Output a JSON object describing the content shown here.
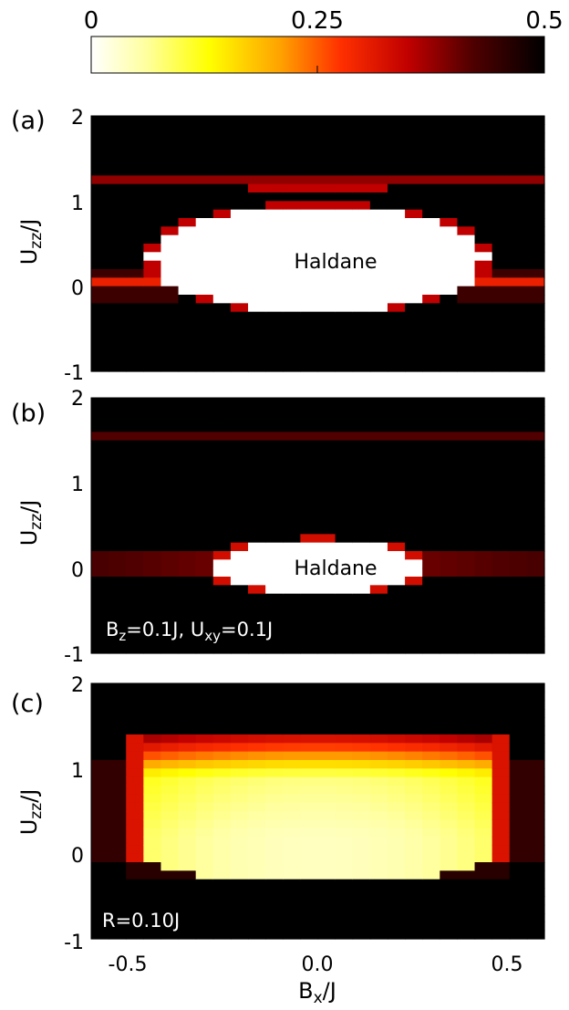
{
  "colorbar": {
    "ticks": [
      {
        "value": 0,
        "label": "0"
      },
      {
        "value": 0.25,
        "label": "0.25"
      },
      {
        "value": 0.5,
        "label": "0.5"
      }
    ],
    "range": [
      0,
      0.5
    ],
    "colormap": "inverted-hot",
    "colors": [
      "#ffffff",
      "#ffff66",
      "#ffd800",
      "#ff8a00",
      "#ff2a00",
      "#c00000",
      "#700000",
      "#2a0000",
      "#000000"
    ]
  },
  "chart_data": [
    {
      "type": "heatmap",
      "panel_label": "(a)",
      "xlabel": "B_x/J",
      "ylabel": "U_zz/J",
      "xlim": [
        -0.6,
        0.6
      ],
      "ylim": [
        -1,
        2
      ],
      "yticks": [
        -1,
        0,
        1,
        2
      ],
      "annotation": "Haldane",
      "inset_text": "",
      "value_range": [
        0,
        0.5
      ],
      "regions": {
        "haldane_half_width_at_center": 0.44,
        "haldane_u_range": [
          -0.3,
          0.95
        ],
        "edge_band_u": 0.05,
        "edge_band_value": 0.3,
        "top_band_u": 1.25,
        "top_band_value": 0.38,
        "upper_band_u": 1.1,
        "upper_band_half_width": 0.2,
        "upper_band_value": 0.35
      }
    },
    {
      "type": "heatmap",
      "panel_label": "(b)",
      "xlabel": "B_x/J",
      "ylabel": "U_zz/J",
      "xlim": [
        -0.6,
        0.6
      ],
      "ylim": [
        -1,
        2
      ],
      "yticks": [
        -1,
        0,
        1,
        2
      ],
      "annotation": "Haldane",
      "inset_text": "B_z=0.1J, U_xy=0.1J",
      "value_range": [
        0,
        0.5
      ],
      "regions": {
        "haldane_half_width_at_center": 0.27,
        "haldane_u_range": [
          -0.3,
          0.32
        ],
        "edge_band_u": 0.05,
        "edge_band_value": 0.38,
        "top_band_u": 1.55,
        "top_band_value": 0.42
      }
    },
    {
      "type": "heatmap",
      "panel_label": "(c)",
      "xlabel": "B_x/J",
      "ylabel": "U_zz/J",
      "xlim": [
        -0.6,
        0.6
      ],
      "ylim": [
        -1,
        2
      ],
      "yticks": [
        -1,
        0,
        1,
        2
      ],
      "xticks": [
        -0.5,
        0.0,
        0.5
      ],
      "xtick_labels": [
        "-0.5",
        "0.0",
        "0.5"
      ],
      "annotation": "",
      "inset_text": "R=0.10J",
      "value_range": [
        0,
        0.5
      ],
      "regions": {
        "plateau_half_width": 0.52,
        "plateau_u_range": [
          -0.3,
          1.4
        ],
        "low_value_center": 0.04,
        "edge_value": 0.32
      }
    }
  ],
  "labels": {
    "panel_a": "(a)",
    "panel_b": "(b)",
    "panel_c": "(c)",
    "ylabel_main": "U",
    "ylabel_sub": "zz",
    "ylabel_tail": "/J",
    "xlabel_main": "B",
    "xlabel_sub": "x",
    "xlabel_tail": "/J",
    "annotation_a": "Haldane",
    "annotation_b": "Haldane",
    "inset_b_part1": "B",
    "inset_b_sub1": "z",
    "inset_b_part2": "=0.1J, U",
    "inset_b_sub2": "xy",
    "inset_b_part3": "=0.1J",
    "inset_c": "R=0.10J",
    "ytick_2": "2",
    "ytick_1": "1",
    "ytick_0": "0",
    "ytick_m1": "-1",
    "xtick_m05": "-0.5",
    "xtick_0": "0.0",
    "xtick_05": "0.5"
  }
}
